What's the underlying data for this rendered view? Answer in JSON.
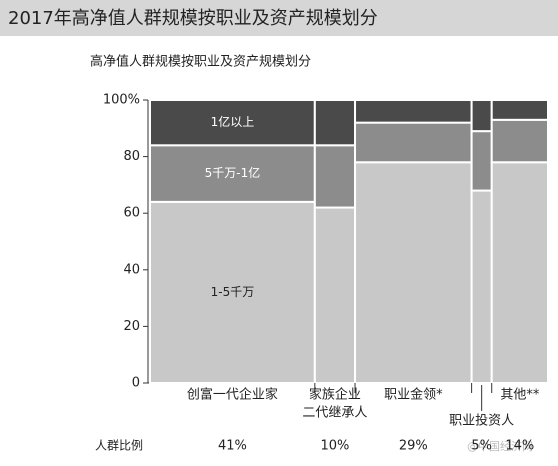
{
  "header": {
    "title": "2017年高净值人群规模按职业及资产规模划分"
  },
  "chart_data": {
    "type": "marimekko",
    "title": "高净值人群规模按职业及资产规模划分",
    "categories": [
      [
        "创富一代企业家"
      ],
      [
        "家族企业",
        "二代继承人"
      ],
      [
        "职业金领*"
      ],
      [
        "职业投资人"
      ],
      [
        "其他**"
      ]
    ],
    "widths_label": "人群比例",
    "widths": [
      41,
      10,
      29,
      5,
      14
    ],
    "value_labels": [
      "41%",
      "10%",
      "29%",
      "5%",
      "14%"
    ],
    "series": [
      {
        "name": "1-5千万",
        "color": "#c8c8c8",
        "values": [
          64,
          62,
          78,
          68,
          78
        ]
      },
      {
        "name": "5千万-1亿",
        "color": "#8c8c8c",
        "values": [
          20,
          22,
          14,
          21,
          15
        ]
      },
      {
        "name": "1亿以上",
        "color": "#4a4a4a",
        "values": [
          16,
          16,
          8,
          11,
          7
        ]
      }
    ],
    "ylim": [
      0,
      100
    ],
    "yticks": [
      0,
      20,
      40,
      60,
      80,
      {
        "value": 100,
        "label": "100%"
      }
    ]
  },
  "watermark": "@中国经济网"
}
